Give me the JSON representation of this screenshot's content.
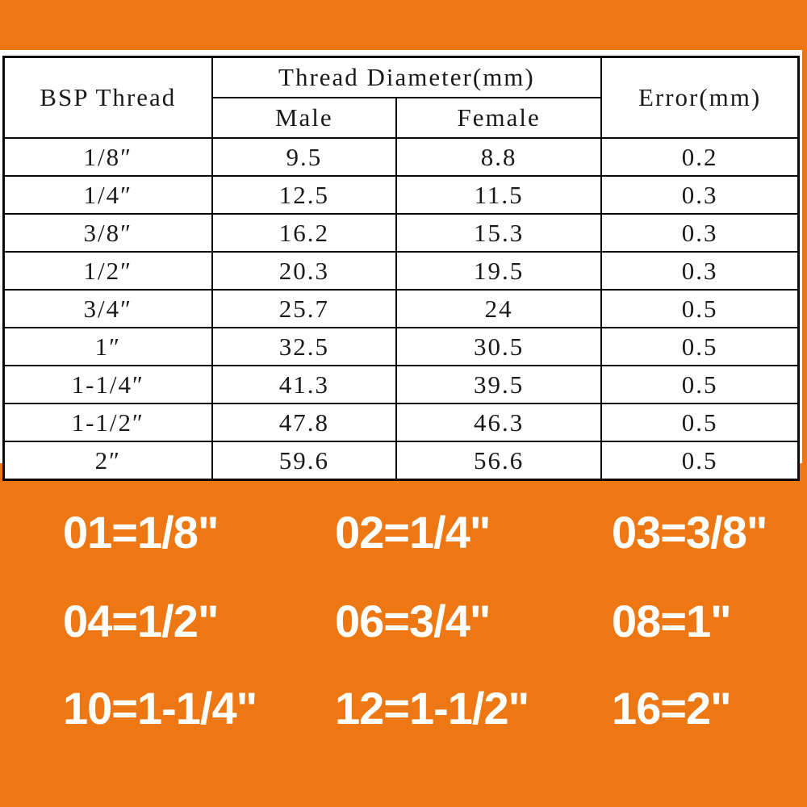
{
  "colors": {
    "background_orange": "#ED7813",
    "panel_white": "#FEFEFE",
    "table_border": "#0A0A0A",
    "table_text": "#1A1A1A",
    "legend_text": "#FFFFFF"
  },
  "table": {
    "header": {
      "bsp": "BSP Thread",
      "diameter_group": "Thread Diameter(mm)",
      "male": "Male",
      "female": "Female",
      "error": "Error(mm)"
    },
    "rows": [
      {
        "bsp": "1/8″",
        "male": "9.5",
        "female": "8.8",
        "error": "0.2"
      },
      {
        "bsp": "1/4″",
        "male": "12.5",
        "female": "11.5",
        "error": "0.3"
      },
      {
        "bsp": "3/8″",
        "male": "16.2",
        "female": "15.3",
        "error": "0.3"
      },
      {
        "bsp": "1/2″",
        "male": "20.3",
        "female": "19.5",
        "error": "0.3"
      },
      {
        "bsp": "3/4″",
        "male": "25.7",
        "female": "24",
        "error": "0.5"
      },
      {
        "bsp": "1″",
        "male": "32.5",
        "female": "30.5",
        "error": "0.5"
      },
      {
        "bsp": "1-1/4″",
        "male": "41.3",
        "female": "39.5",
        "error": "0.5"
      },
      {
        "bsp": "1-1/2″",
        "male": "47.8",
        "female": "46.3",
        "error": "0.5"
      },
      {
        "bsp": "2″",
        "male": "59.6",
        "female": "56.6",
        "error": "0.5"
      }
    ]
  },
  "codes": {
    "rows": [
      [
        "01=1/8\"",
        "02=1/4\"",
        "03=3/8\""
      ],
      [
        "04=1/2\"",
        "06=3/4\"",
        "08=1\""
      ],
      [
        "10=1-1/4\"",
        "12=1-1/2\"",
        "16=2\""
      ]
    ]
  },
  "chart_data": {
    "type": "table",
    "title": "BSP Thread size specification",
    "columns": [
      "BSP Thread",
      "Thread Diameter(mm) Male",
      "Thread Diameter(mm) Female",
      "Error(mm)"
    ],
    "rows": [
      [
        "1/8\"",
        9.5,
        8.8,
        0.2
      ],
      [
        "1/4\"",
        12.5,
        11.5,
        0.3
      ],
      [
        "3/8\"",
        16.2,
        15.3,
        0.3
      ],
      [
        "1/2\"",
        20.3,
        19.5,
        0.3
      ],
      [
        "3/4\"",
        25.7,
        24,
        0.5
      ],
      [
        "1\"",
        32.5,
        30.5,
        0.5
      ],
      [
        "1-1/4\"",
        41.3,
        39.5,
        0.5
      ],
      [
        "1-1/2\"",
        47.8,
        46.3,
        0.5
      ],
      [
        "2\"",
        59.6,
        56.6,
        0.5
      ]
    ],
    "legend": [
      "01=1/8\"",
      "02=1/4\"",
      "03=3/8\"",
      "04=1/2\"",
      "06=3/4\"",
      "08=1\"",
      "10=1-1/4\"",
      "12=1-1/2\"",
      "16=2\""
    ],
    "legend_position": "bottom"
  }
}
